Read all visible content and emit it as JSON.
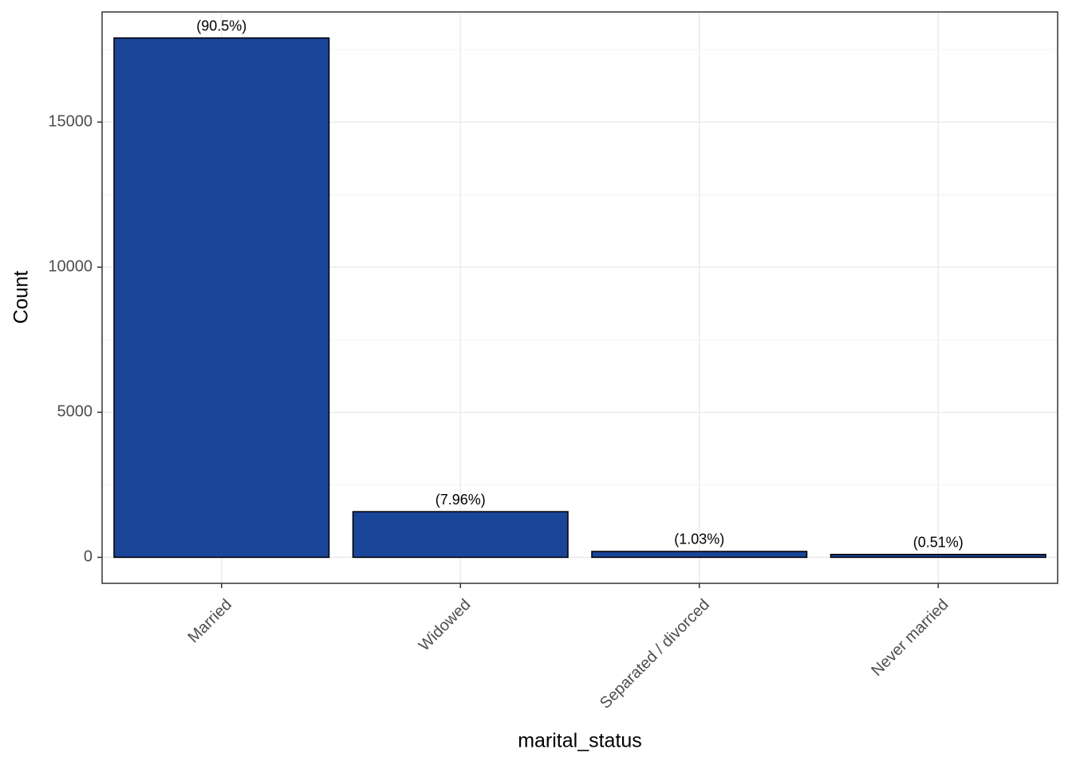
{
  "chart_data": {
    "type": "bar",
    "x_label": "marital_status",
    "y_label": "Count",
    "categories": [
      "Married",
      "Widowed",
      "Separated / divorced",
      "Never married"
    ],
    "values": [
      17900,
      1575,
      204,
      101
    ],
    "labels": [
      "(90.5%)",
      "(7.96%)",
      "(1.03%)",
      "(0.51%)"
    ],
    "color": "#1a4599",
    "ylim": [
      -895,
      18795
    ],
    "yticks": [
      0,
      5000,
      10000,
      15000
    ],
    "grid": true
  }
}
